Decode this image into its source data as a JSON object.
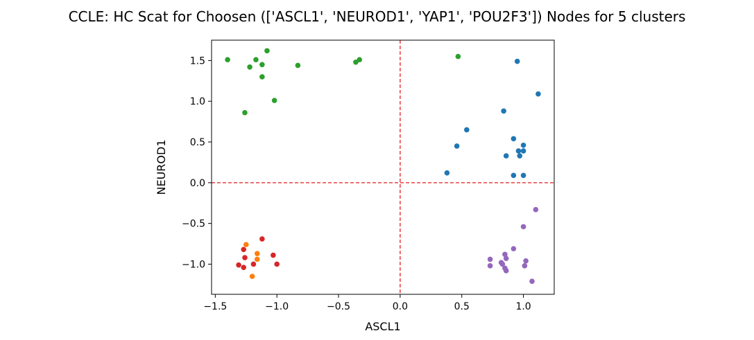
{
  "chart_data": {
    "type": "scatter",
    "title": "CCLE: HC Scat for Choosen (['ASCL1', 'NEUROD1', 'YAP1', 'POU2F3']) Nodes for 5 clusters",
    "xlabel": "ASCL1",
    "ylabel": "NEUROD1",
    "xlim": [
      -1.53,
      1.25
    ],
    "ylim": [
      -1.37,
      1.75
    ],
    "xticks": [
      -1.5,
      -1.0,
      -0.5,
      0.0,
      0.5,
      1.0
    ],
    "yticks": [
      -1.0,
      -0.5,
      0.0,
      0.5,
      1.0,
      1.5
    ],
    "xtick_labels": [
      "−1.5",
      "−1.0",
      "−0.5",
      "0.0",
      "0.5",
      "1.0"
    ],
    "ytick_labels": [
      "−1.0",
      "−0.5",
      "0.0",
      "0.5",
      "1.0",
      "1.5"
    ],
    "reference_lines": [
      {
        "axis": "x",
        "value": 0,
        "color": "#e41a1c",
        "style": "dashed"
      },
      {
        "axis": "y",
        "value": 0,
        "color": "#e41a1c",
        "style": "dashed"
      }
    ],
    "grid": false,
    "series": [
      {
        "color": "#1f77b4",
        "points": [
          [
            0.95,
            1.49
          ],
          [
            1.12,
            1.09
          ],
          [
            0.84,
            0.88
          ],
          [
            0.54,
            0.65
          ],
          [
            0.92,
            0.54
          ],
          [
            1.0,
            0.46
          ],
          [
            0.46,
            0.45
          ],
          [
            0.96,
            0.39
          ],
          [
            1.0,
            0.39
          ],
          [
            0.86,
            0.33
          ],
          [
            0.97,
            0.33
          ],
          [
            0.38,
            0.12
          ],
          [
            0.92,
            0.09
          ],
          [
            1.0,
            0.09
          ]
        ]
      },
      {
        "color": "#2ca02c",
        "points": [
          [
            -1.4,
            1.51
          ],
          [
            -1.08,
            1.62
          ],
          [
            -1.17,
            1.51
          ],
          [
            -1.22,
            1.42
          ],
          [
            -1.12,
            1.45
          ],
          [
            -0.83,
            1.44
          ],
          [
            -1.12,
            1.3
          ],
          [
            -0.36,
            1.48
          ],
          [
            -0.33,
            1.51
          ],
          [
            0.47,
            1.55
          ],
          [
            -1.02,
            1.01
          ],
          [
            -1.26,
            0.86
          ]
        ]
      },
      {
        "color": "#9467bd",
        "points": [
          [
            1.1,
            -0.33
          ],
          [
            1.0,
            -0.54
          ],
          [
            0.92,
            -0.81
          ],
          [
            0.85,
            -0.88
          ],
          [
            0.73,
            -0.94
          ],
          [
            0.86,
            -0.93
          ],
          [
            0.82,
            -0.98
          ],
          [
            1.02,
            -0.96
          ],
          [
            0.73,
            -1.02
          ],
          [
            0.83,
            -1.0
          ],
          [
            1.01,
            -1.02
          ],
          [
            0.85,
            -1.05
          ],
          [
            0.86,
            -1.08
          ],
          [
            1.07,
            -1.21
          ]
        ]
      },
      {
        "color": "#d62728",
        "points": [
          [
            -1.12,
            -0.69
          ],
          [
            -1.27,
            -0.82
          ],
          [
            -1.03,
            -0.89
          ],
          [
            -1.26,
            -0.92
          ],
          [
            -1.19,
            -1.0
          ],
          [
            -1.31,
            -1.01
          ],
          [
            -1.0,
            -1.0
          ],
          [
            -1.27,
            -1.04
          ]
        ]
      },
      {
        "color": "#ff7f0e",
        "points": [
          [
            -1.25,
            -0.76
          ],
          [
            -1.16,
            -0.87
          ],
          [
            -1.16,
            -0.94
          ],
          [
            -1.2,
            -1.15
          ]
        ]
      }
    ]
  }
}
